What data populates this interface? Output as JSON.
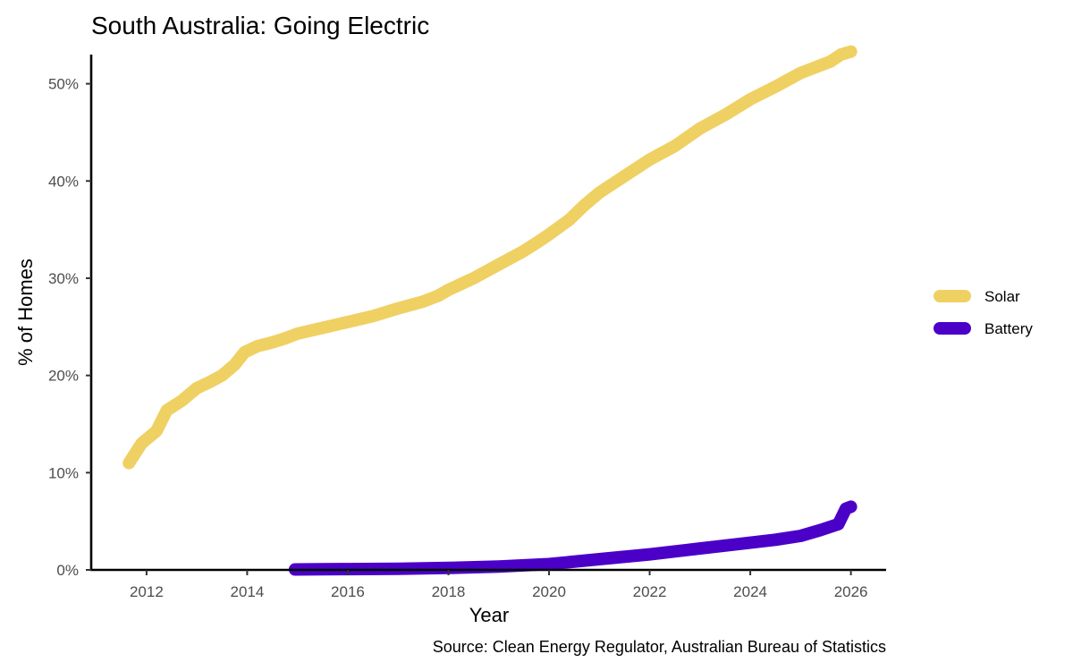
{
  "chart_data": {
    "type": "line",
    "title": "South Australia: Going Electric",
    "xlabel": "Year",
    "ylabel": "% of Homes",
    "caption": "Source: Clean Energy Regulator, Australian Bureau of Statistics",
    "xlim": [
      2010.9,
      2026.7
    ],
    "ylim": [
      0,
      53
    ],
    "grid": false,
    "legend_position": "right",
    "x_ticks": [
      {
        "value": 2012,
        "label": "2012"
      },
      {
        "value": 2014,
        "label": "2014"
      },
      {
        "value": 2016,
        "label": "2016"
      },
      {
        "value": 2018,
        "label": "2018"
      },
      {
        "value": 2020,
        "label": "2020"
      },
      {
        "value": 2022,
        "label": "2022"
      },
      {
        "value": 2024,
        "label": "2024"
      },
      {
        "value": 2026,
        "label": "2026"
      }
    ],
    "y_ticks": [
      {
        "value": 0,
        "label": "0%"
      },
      {
        "value": 10,
        "label": "10%"
      },
      {
        "value": 20,
        "label": "20%"
      },
      {
        "value": 30,
        "label": "30%"
      },
      {
        "value": 40,
        "label": "40%"
      },
      {
        "value": 50,
        "label": "50%"
      }
    ],
    "series": [
      {
        "name": "Solar",
        "color": "#EFD062",
        "x": [
          2011.65,
          2011.9,
          2012.2,
          2012.4,
          2012.7,
          2013.0,
          2013.25,
          2013.5,
          2013.75,
          2013.95,
          2014.2,
          2014.5,
          2014.75,
          2015.0,
          2015.5,
          2016.0,
          2016.5,
          2017.0,
          2017.5,
          2017.8,
          2018.0,
          2018.5,
          2019.0,
          2019.5,
          2019.8,
          2020.0,
          2020.4,
          2020.7,
          2021.0,
          2021.5,
          2022.0,
          2022.5,
          2023.0,
          2023.5,
          2024.0,
          2024.5,
          2025.0,
          2025.3,
          2025.6,
          2025.8,
          2026.0
        ],
        "values": [
          11.0,
          13.0,
          14.3,
          16.4,
          17.4,
          18.7,
          19.3,
          20.0,
          21.1,
          22.4,
          23.0,
          23.4,
          23.8,
          24.3,
          24.9,
          25.5,
          26.1,
          26.9,
          27.6,
          28.2,
          28.8,
          30.0,
          31.4,
          32.8,
          33.8,
          34.5,
          36.0,
          37.5,
          38.8,
          40.5,
          42.2,
          43.6,
          45.4,
          46.8,
          48.4,
          49.7,
          51.1,
          51.7,
          52.3,
          53.0,
          53.3
        ]
      },
      {
        "name": "Battery",
        "color": "#4B00C8",
        "x": [
          2014.95,
          2015.5,
          2016.0,
          2017.0,
          2018.0,
          2019.0,
          2020.0,
          2021.0,
          2022.0,
          2023.0,
          2024.0,
          2024.5,
          2025.0,
          2025.4,
          2025.75,
          2025.9,
          2026.0
        ],
        "values": [
          0.05,
          0.06,
          0.08,
          0.12,
          0.2,
          0.35,
          0.6,
          1.1,
          1.6,
          2.2,
          2.8,
          3.1,
          3.5,
          4.1,
          4.7,
          6.3,
          6.5
        ]
      }
    ]
  }
}
